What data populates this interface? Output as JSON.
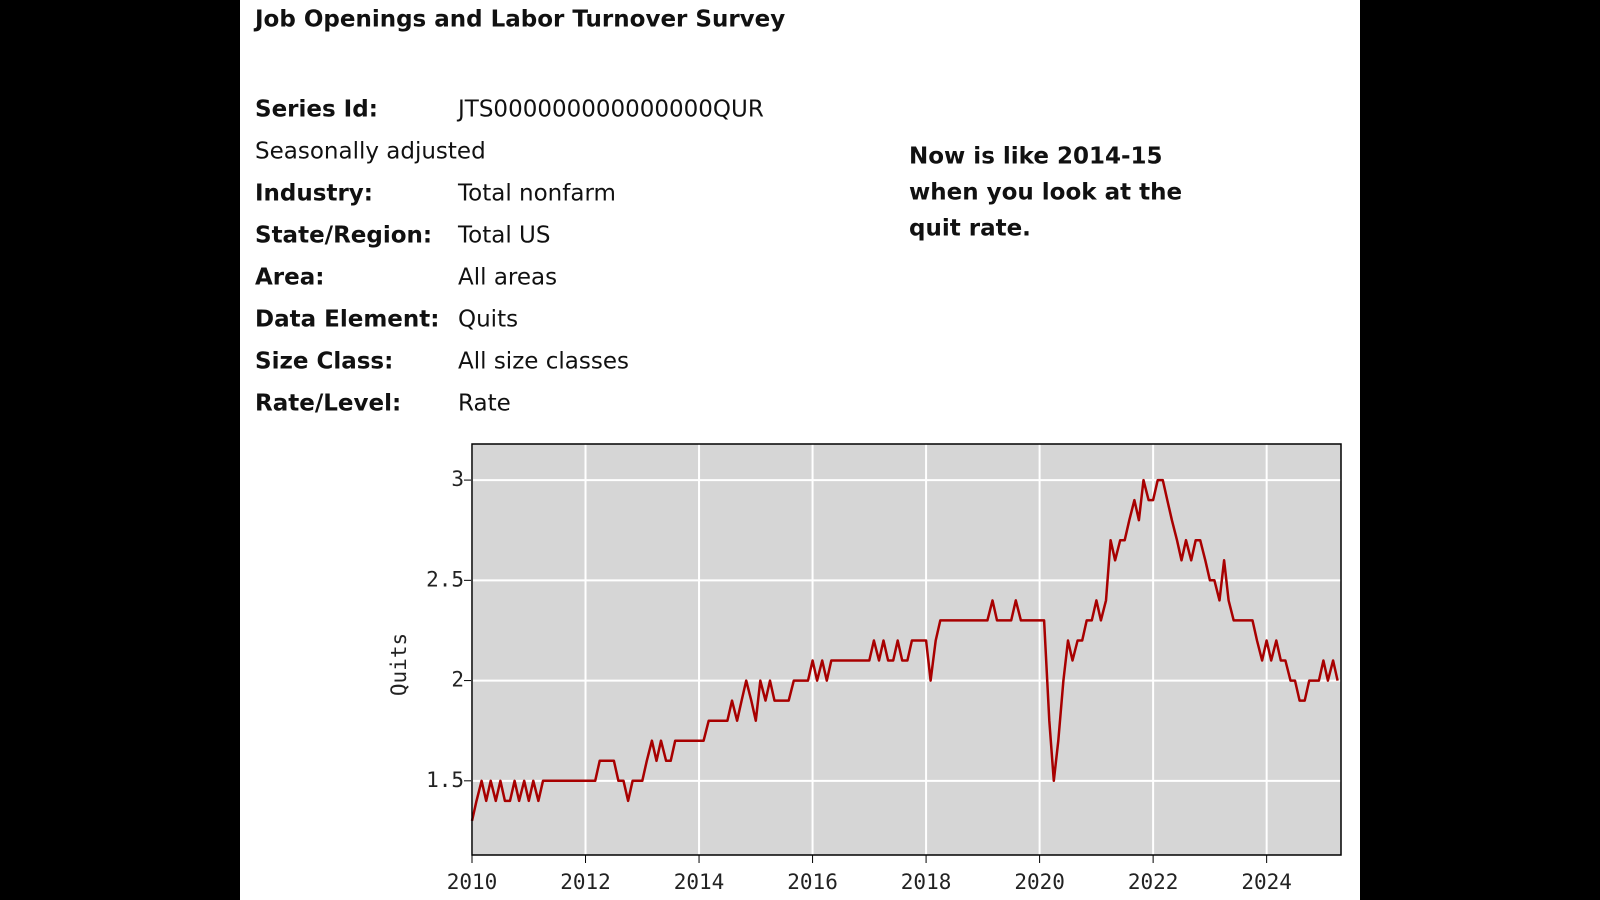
{
  "header": {
    "title": "Job Openings and Labor Turnover Survey"
  },
  "fields": [
    {
      "label": "Series Id:",
      "value": "JTS000000000000000QUR"
    },
    {
      "label": "Seasonally adjusted"
    },
    {
      "label": "Industry:",
      "value": "Total nonfarm"
    },
    {
      "label": "State/Region:",
      "value": "Total US"
    },
    {
      "label": "Area:",
      "value": "All areas"
    },
    {
      "label": "Data Element:",
      "value": "Quits"
    },
    {
      "label": "Size Class:",
      "value": "All size classes"
    },
    {
      "label": "Rate/Level:",
      "value": "Rate"
    }
  ],
  "annotation": [
    "Now is like 2014-15",
    "when you look at the",
    "quit rate."
  ],
  "chart_data": {
    "type": "line",
    "y_label": "Quits",
    "grid": true,
    "background": "#d6d6d6",
    "xlim": [
      2010,
      2025.31
    ],
    "ylim": [
      1.13,
      3.18
    ],
    "xticks": [
      2010,
      2012,
      2014,
      2016,
      2018,
      2020,
      2022,
      2024
    ],
    "yticks": [
      1.5,
      2,
      2.5,
      3
    ],
    "x": [
      2010.0,
      2010.08,
      2010.17,
      2010.25,
      2010.33,
      2010.42,
      2010.5,
      2010.58,
      2010.67,
      2010.75,
      2010.83,
      2010.92,
      2011.0,
      2011.08,
      2011.17,
      2011.25,
      2011.33,
      2011.42,
      2011.5,
      2011.58,
      2011.67,
      2011.75,
      2011.83,
      2011.92,
      2012.0,
      2012.08,
      2012.17,
      2012.25,
      2012.33,
      2012.42,
      2012.5,
      2012.58,
      2012.67,
      2012.75,
      2012.83,
      2012.92,
      2013.0,
      2013.08,
      2013.17,
      2013.25,
      2013.33,
      2013.42,
      2013.5,
      2013.58,
      2013.67,
      2013.75,
      2013.83,
      2013.92,
      2014.0,
      2014.08,
      2014.17,
      2014.25,
      2014.33,
      2014.42,
      2014.5,
      2014.58,
      2014.67,
      2014.75,
      2014.83,
      2014.92,
      2015.0,
      2015.08,
      2015.17,
      2015.25,
      2015.33,
      2015.42,
      2015.5,
      2015.58,
      2015.67,
      2015.75,
      2015.83,
      2015.92,
      2016.0,
      2016.08,
      2016.17,
      2016.25,
      2016.33,
      2016.42,
      2016.5,
      2016.58,
      2016.67,
      2016.75,
      2016.83,
      2016.92,
      2017.0,
      2017.08,
      2017.17,
      2017.25,
      2017.33,
      2017.42,
      2017.5,
      2017.58,
      2017.67,
      2017.75,
      2017.83,
      2017.92,
      2018.0,
      2018.08,
      2018.17,
      2018.25,
      2018.33,
      2018.42,
      2018.5,
      2018.58,
      2018.67,
      2018.75,
      2018.83,
      2018.92,
      2019.0,
      2019.08,
      2019.17,
      2019.25,
      2019.33,
      2019.42,
      2019.5,
      2019.58,
      2019.67,
      2019.75,
      2019.83,
      2019.92,
      2020.0,
      2020.08,
      2020.17,
      2020.25,
      2020.33,
      2020.42,
      2020.5,
      2020.58,
      2020.67,
      2020.75,
      2020.83,
      2020.92,
      2021.0,
      2021.08,
      2021.17,
      2021.25,
      2021.33,
      2021.42,
      2021.5,
      2021.58,
      2021.67,
      2021.75,
      2021.83,
      2021.92,
      2022.0,
      2022.08,
      2022.17,
      2022.25,
      2022.33,
      2022.42,
      2022.5,
      2022.58,
      2022.67,
      2022.75,
      2022.83,
      2022.92,
      2023.0,
      2023.08,
      2023.17,
      2023.25,
      2023.33,
      2023.42,
      2023.5,
      2023.58,
      2023.67,
      2023.75,
      2023.83,
      2023.92,
      2024.0,
      2024.08,
      2024.17,
      2024.25,
      2024.33,
      2024.42,
      2024.5,
      2024.58,
      2024.67,
      2024.75,
      2024.83,
      2024.92,
      2025.0,
      2025.08,
      2025.17,
      2025.25
    ],
    "series": [
      {
        "name": "Quits",
        "color": "#a80000",
        "values": [
          1.3,
          1.4,
          1.5,
          1.4,
          1.5,
          1.4,
          1.5,
          1.4,
          1.4,
          1.5,
          1.4,
          1.5,
          1.4,
          1.5,
          1.4,
          1.5,
          1.5,
          1.5,
          1.5,
          1.5,
          1.5,
          1.5,
          1.5,
          1.5,
          1.5,
          1.5,
          1.5,
          1.6,
          1.6,
          1.6,
          1.6,
          1.5,
          1.5,
          1.4,
          1.5,
          1.5,
          1.5,
          1.6,
          1.7,
          1.6,
          1.7,
          1.6,
          1.6,
          1.7,
          1.7,
          1.7,
          1.7,
          1.7,
          1.7,
          1.7,
          1.8,
          1.8,
          1.8,
          1.8,
          1.8,
          1.9,
          1.8,
          1.9,
          2.0,
          1.9,
          1.8,
          2.0,
          1.9,
          2.0,
          1.9,
          1.9,
          1.9,
          1.9,
          2.0,
          2.0,
          2.0,
          2.0,
          2.1,
          2.0,
          2.1,
          2.0,
          2.1,
          2.1,
          2.1,
          2.1,
          2.1,
          2.1,
          2.1,
          2.1,
          2.1,
          2.2,
          2.1,
          2.2,
          2.1,
          2.1,
          2.2,
          2.1,
          2.1,
          2.2,
          2.2,
          2.2,
          2.2,
          2.0,
          2.2,
          2.3,
          2.3,
          2.3,
          2.3,
          2.3,
          2.3,
          2.3,
          2.3,
          2.3,
          2.3,
          2.3,
          2.4,
          2.3,
          2.3,
          2.3,
          2.3,
          2.4,
          2.3,
          2.3,
          2.3,
          2.3,
          2.3,
          2.3,
          1.8,
          1.5,
          1.7,
          2.0,
          2.2,
          2.1,
          2.2,
          2.2,
          2.3,
          2.3,
          2.4,
          2.3,
          2.4,
          2.7,
          2.6,
          2.7,
          2.7,
          2.8,
          2.9,
          2.8,
          3.0,
          2.9,
          2.9,
          3.0,
          3.0,
          2.9,
          2.8,
          2.7,
          2.6,
          2.7,
          2.6,
          2.7,
          2.7,
          2.6,
          2.5,
          2.5,
          2.4,
          2.6,
          2.4,
          2.3,
          2.3,
          2.3,
          2.3,
          2.3,
          2.2,
          2.1,
          2.2,
          2.1,
          2.2,
          2.1,
          2.1,
          2.0,
          2.0,
          1.9,
          1.9,
          2.0,
          2.0,
          2.0,
          2.1,
          2.0,
          2.1,
          2.0
        ]
      }
    ]
  }
}
